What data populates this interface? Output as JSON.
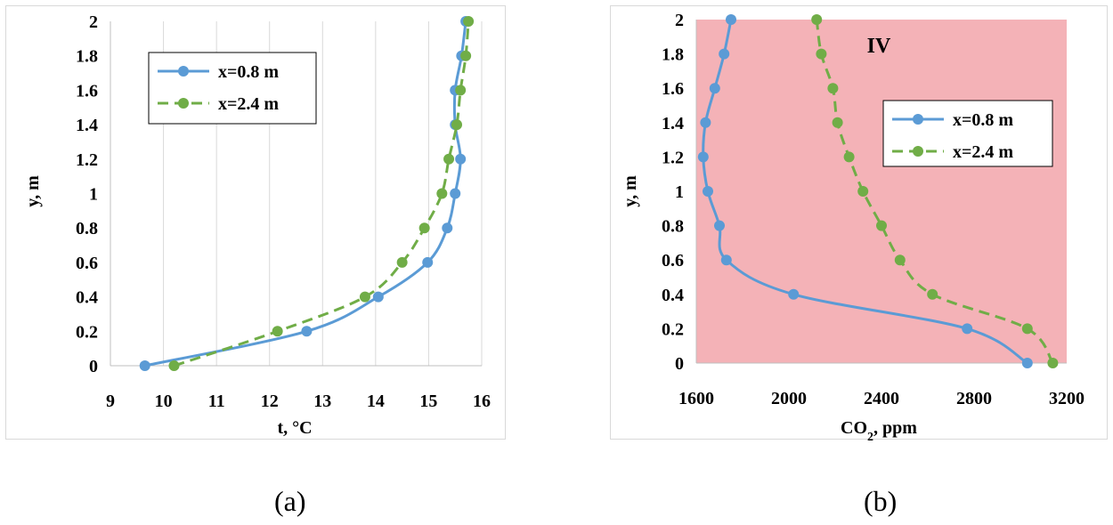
{
  "colors": {
    "series_blue": "#5b9bd5",
    "series_green": "#70ad47",
    "plot_bg_b": "#f4b2b7",
    "grid": "#d9d9d9",
    "axis": "#bfbfbf"
  },
  "captions": {
    "a": "(a)",
    "b": "(b)"
  },
  "chart_data": [
    {
      "type": "line",
      "title": "",
      "xlabel": "t, °C",
      "ylabel": "y, m",
      "xlim": [
        9,
        16
      ],
      "ylim": [
        0,
        2
      ],
      "xticks": [
        "9",
        "10",
        "11",
        "12",
        "13",
        "14",
        "15",
        "16"
      ],
      "yticks": [
        "0",
        "0.2",
        "0.4",
        "0.6",
        "0.8",
        "1",
        "1.2",
        "1.4",
        "1.6",
        "1.8",
        "2"
      ],
      "grid": "vertical",
      "legend_position": "top-left",
      "series": [
        {
          "name": "x=0.8 m",
          "style": "solid",
          "x": [
            9.65,
            12.7,
            14.05,
            14.98,
            15.35,
            15.5,
            15.6,
            15.5,
            15.5,
            15.62,
            15.7
          ],
          "y": [
            0,
            0.2,
            0.4,
            0.6,
            0.8,
            1.0,
            1.2,
            1.4,
            1.6,
            1.8,
            2.0
          ]
        },
        {
          "name": "x=2.4 m",
          "style": "dashed",
          "x": [
            10.2,
            12.15,
            13.8,
            14.5,
            14.92,
            15.25,
            15.38,
            15.53,
            15.6,
            15.7,
            15.75
          ],
          "y": [
            0,
            0.2,
            0.4,
            0.6,
            0.8,
            1.0,
            1.2,
            1.4,
            1.6,
            1.8,
            2.0
          ]
        }
      ]
    },
    {
      "type": "line",
      "title": "",
      "annotation": "IV",
      "xlabel_main": "CO",
      "xlabel_sub": "2",
      "xlabel_rest": ", ppm",
      "ylabel": "y, m",
      "xlim": [
        1600,
        3200
      ],
      "ylim": [
        0,
        2
      ],
      "xticks": [
        "1600",
        "2000",
        "2400",
        "2800",
        "3200"
      ],
      "yticks": [
        "0",
        "0.2",
        "0.4",
        "0.6",
        "0.8",
        "1",
        "1.2",
        "1.4",
        "1.6",
        "1.8",
        "2"
      ],
      "grid": "none",
      "legend_position": "top-right",
      "series": [
        {
          "name": "x=0.8 m",
          "style": "solid",
          "x": [
            3030,
            2770,
            2020,
            1730,
            1700,
            1650,
            1630,
            1640,
            1680,
            1720,
            1750
          ],
          "y": [
            0,
            0.2,
            0.4,
            0.6,
            0.8,
            1.0,
            1.2,
            1.4,
            1.6,
            1.8,
            2.0
          ]
        },
        {
          "name": "x=2.4 m",
          "style": "dashed",
          "x": [
            3140,
            3030,
            2620,
            2480,
            2400,
            2320,
            2260,
            2210,
            2190,
            2140,
            2120
          ],
          "y": [
            0,
            0.2,
            0.4,
            0.6,
            0.8,
            1.0,
            1.2,
            1.4,
            1.6,
            1.8,
            2.0
          ]
        }
      ]
    }
  ]
}
